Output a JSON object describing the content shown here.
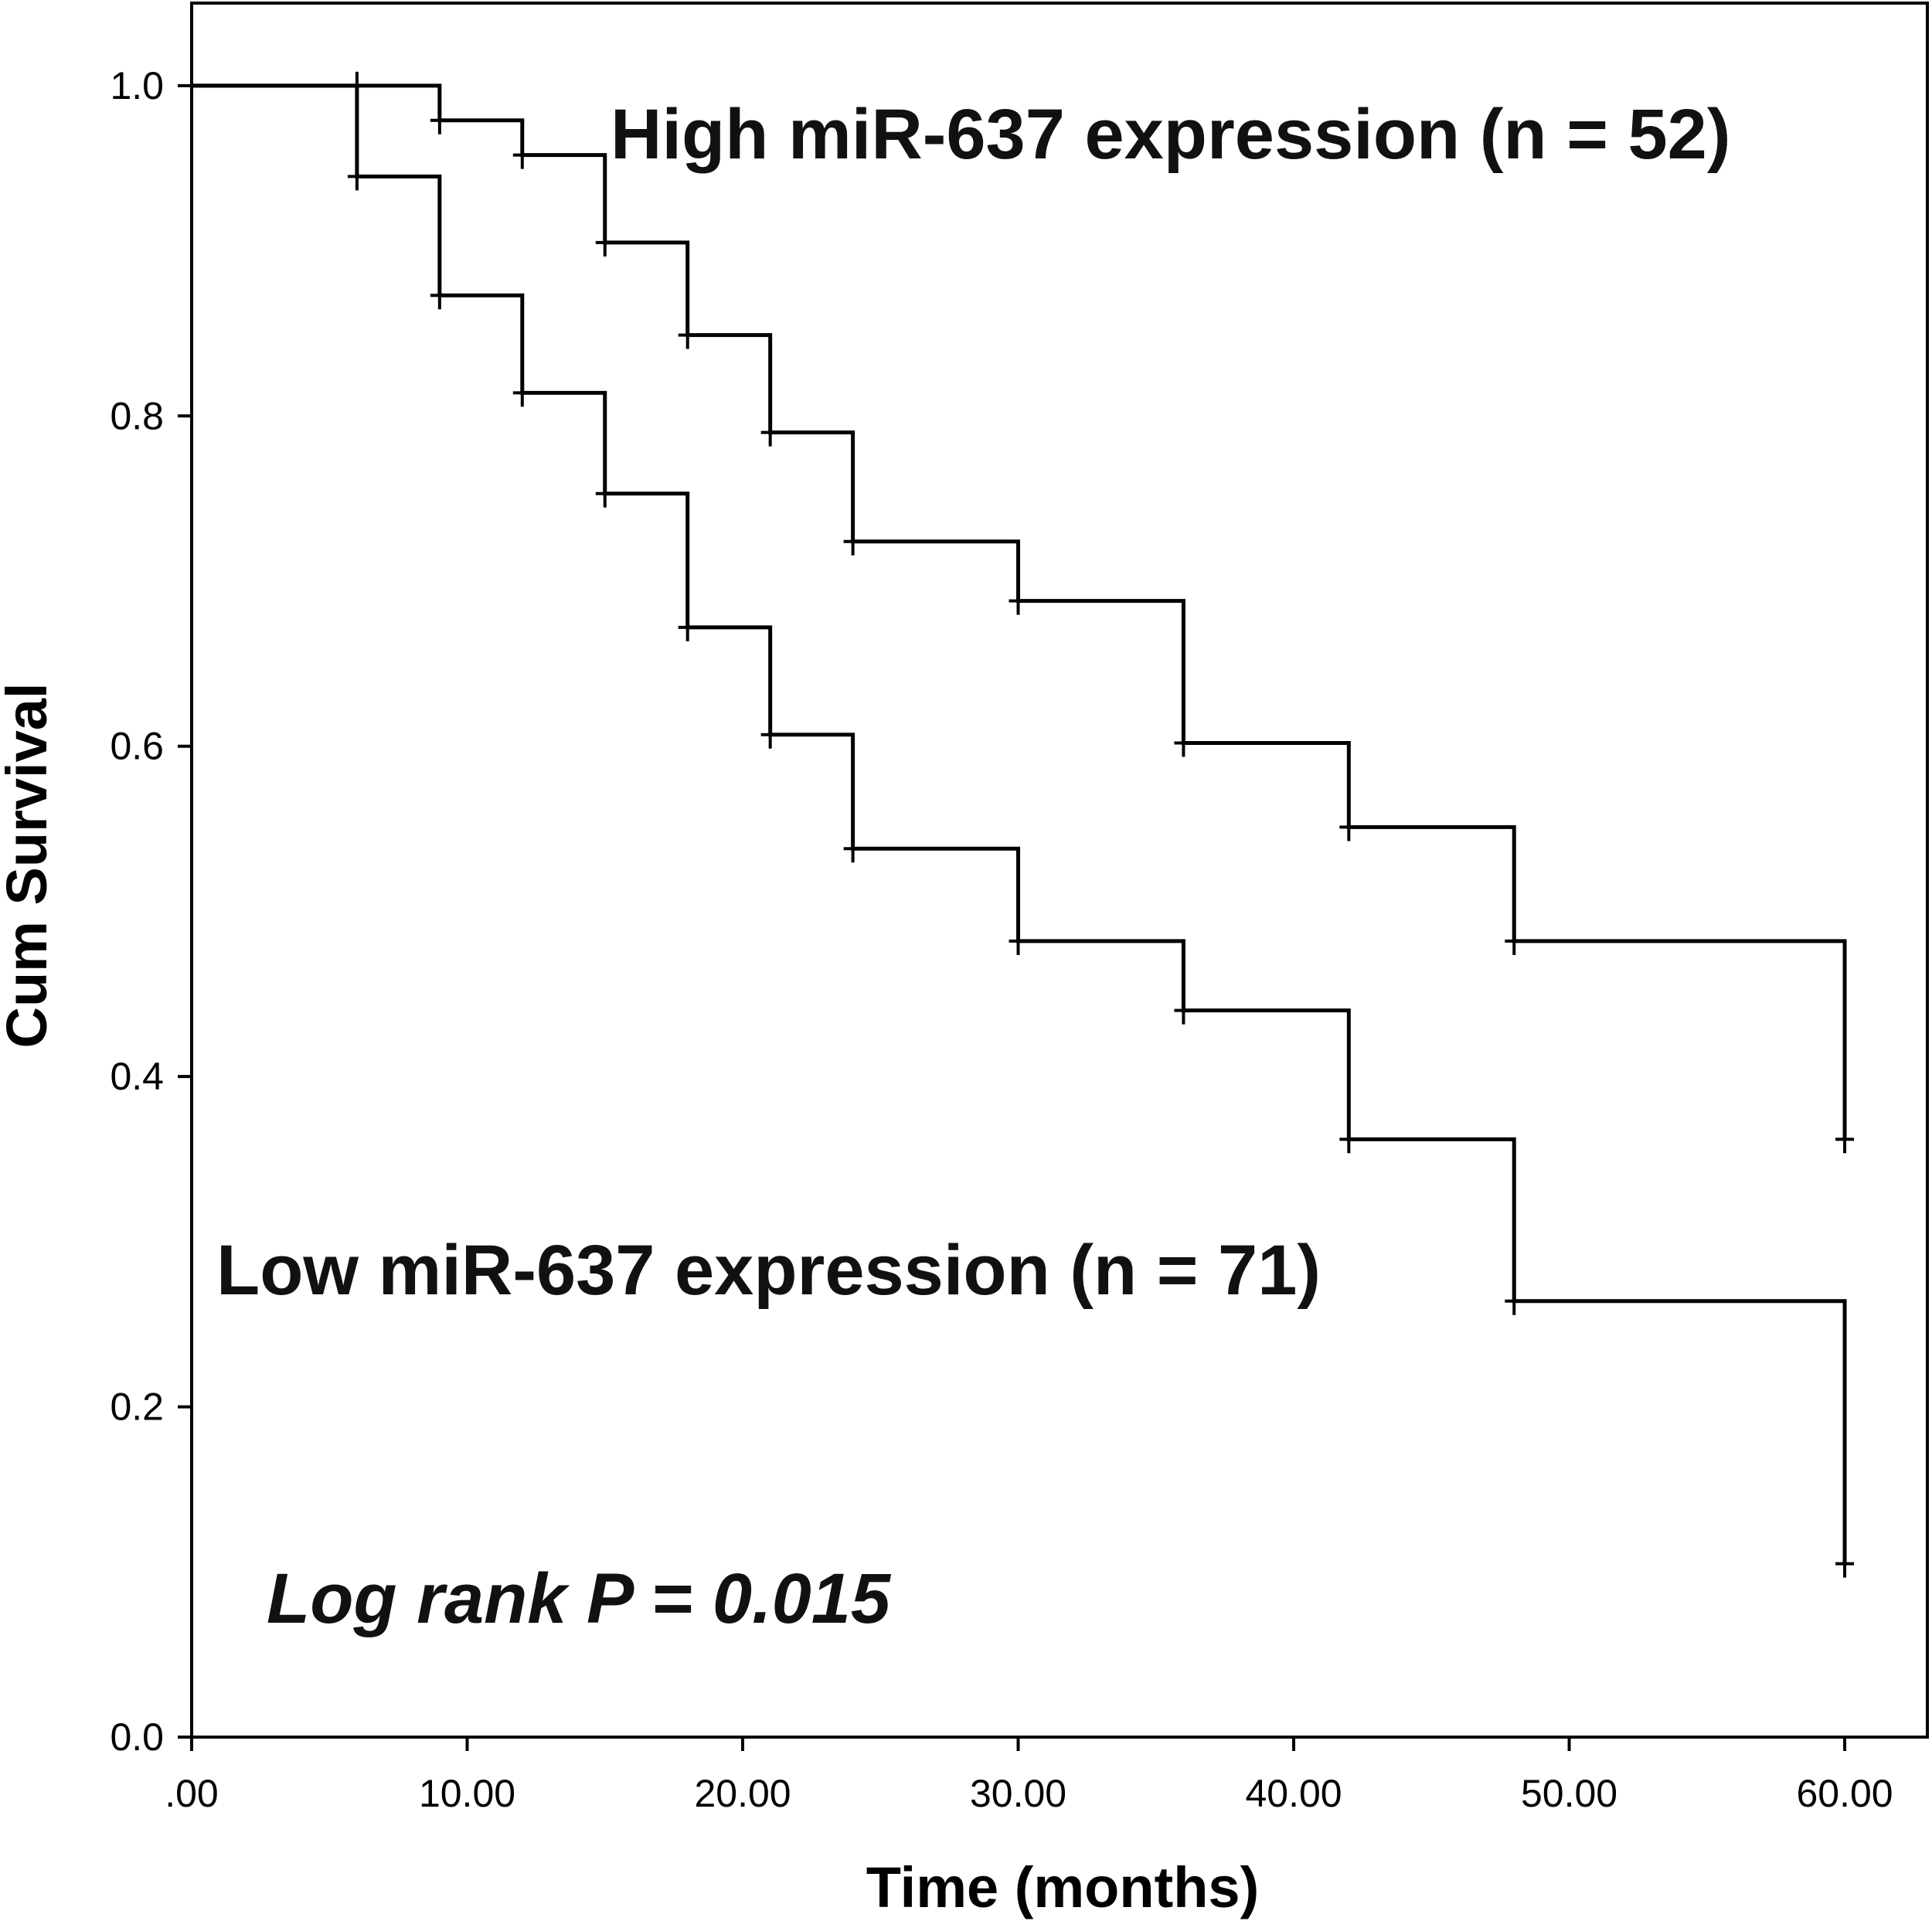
{
  "chart_data": {
    "type": "line",
    "subtype": "kaplan-meier step",
    "xlabel": "Time (months)",
    "ylabel": "Cum Survival",
    "xlim": [
      0,
      63
    ],
    "ylim": [
      0,
      1.05
    ],
    "x_ticks": [
      {
        "value": 0,
        "label": ".00"
      },
      {
        "value": 10,
        "label": "10.00"
      },
      {
        "value": 20,
        "label": "20.00"
      },
      {
        "value": 30,
        "label": "30.00"
      },
      {
        "value": 40,
        "label": "40.00"
      },
      {
        "value": 50,
        "label": "50.00"
      },
      {
        "value": 60,
        "label": "60.00"
      }
    ],
    "y_ticks": [
      {
        "value": 0.0,
        "label": "0.0"
      },
      {
        "value": 0.2,
        "label": "0.2"
      },
      {
        "value": 0.4,
        "label": "0.4"
      },
      {
        "value": 0.6,
        "label": "0.6"
      },
      {
        "value": 0.8,
        "label": "0.8"
      },
      {
        "value": 1.0,
        "label": "1.0"
      }
    ],
    "grid": false,
    "series": [
      {
        "name": "High miR-637 expression (n = 52)",
        "color": "#000000",
        "steps": [
          {
            "x": 0,
            "y": 1.0
          },
          {
            "x": 9,
            "y": 0.979
          },
          {
            "x": 12,
            "y": 0.958
          },
          {
            "x": 15,
            "y": 0.905
          },
          {
            "x": 18,
            "y": 0.849
          },
          {
            "x": 21,
            "y": 0.79
          },
          {
            "x": 24,
            "y": 0.724
          },
          {
            "x": 30,
            "y": 0.688
          },
          {
            "x": 36,
            "y": 0.602
          },
          {
            "x": 42,
            "y": 0.551
          },
          {
            "x": 48,
            "y": 0.482
          },
          {
            "x": 60,
            "y": 0.362
          }
        ],
        "censored": [
          {
            "x": 6,
            "y": 1.0
          },
          {
            "x": 9,
            "y": 0.979
          },
          {
            "x": 12,
            "y": 0.958
          },
          {
            "x": 15,
            "y": 0.905
          },
          {
            "x": 18,
            "y": 0.849
          },
          {
            "x": 21,
            "y": 0.79
          },
          {
            "x": 24,
            "y": 0.724
          },
          {
            "x": 30,
            "y": 0.688
          },
          {
            "x": 36,
            "y": 0.602
          },
          {
            "x": 42,
            "y": 0.551
          },
          {
            "x": 48,
            "y": 0.482
          },
          {
            "x": 60,
            "y": 0.362
          }
        ]
      },
      {
        "name": "Low miR-637 expression (n = 71)",
        "color": "#000000",
        "steps": [
          {
            "x": 0,
            "y": 1.0
          },
          {
            "x": 6,
            "y": 0.945
          },
          {
            "x": 9,
            "y": 0.873
          },
          {
            "x": 12,
            "y": 0.814
          },
          {
            "x": 15,
            "y": 0.753
          },
          {
            "x": 18,
            "y": 0.672
          },
          {
            "x": 21,
            "y": 0.607
          },
          {
            "x": 24,
            "y": 0.538
          },
          {
            "x": 30,
            "y": 0.482
          },
          {
            "x": 36,
            "y": 0.44
          },
          {
            "x": 42,
            "y": 0.362
          },
          {
            "x": 48,
            "y": 0.264
          },
          {
            "x": 60,
            "y": 0.105
          }
        ],
        "censored": [
          {
            "x": 6,
            "y": 0.945
          },
          {
            "x": 9,
            "y": 0.873
          },
          {
            "x": 12,
            "y": 0.814
          },
          {
            "x": 15,
            "y": 0.753
          },
          {
            "x": 18,
            "y": 0.672
          },
          {
            "x": 21,
            "y": 0.607
          },
          {
            "x": 24,
            "y": 0.538
          },
          {
            "x": 30,
            "y": 0.482
          },
          {
            "x": 36,
            "y": 0.44
          },
          {
            "x": 42,
            "y": 0.362
          },
          {
            "x": 48,
            "y": 0.264
          },
          {
            "x": 60,
            "y": 0.105
          }
        ]
      }
    ],
    "annotations": {
      "high_label": "High miR-637 expression (n = 52)",
      "low_label": "Low miR-637 expression (n = 71)",
      "p_value": "Log rank P = 0.015"
    }
  }
}
